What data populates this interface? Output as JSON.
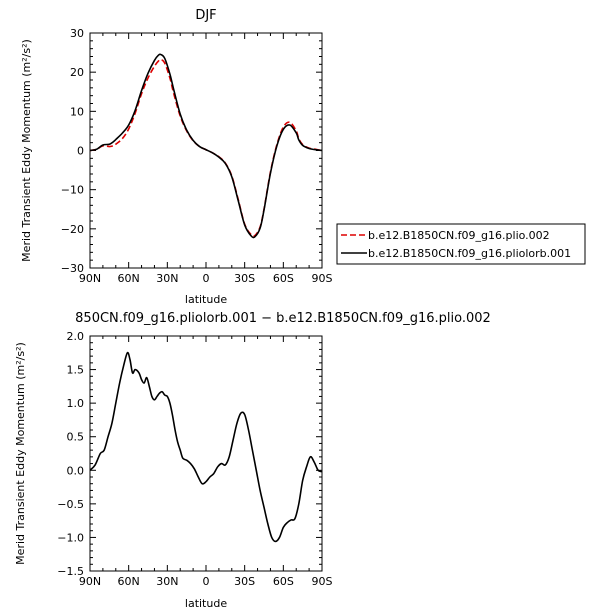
{
  "chart_data": [
    {
      "type": "line",
      "title": "DJF",
      "xlabel": "latitude",
      "ylabel": "Merid Transient Eddy Momentum (m²/s²)",
      "xlim": [
        90,
        -90
      ],
      "ylim": [
        -30,
        30
      ],
      "x_ticks": [
        90,
        60,
        30,
        0,
        -30,
        -60,
        -90
      ],
      "x_tick_labels": [
        "90N",
        "60N",
        "30N",
        "0",
        "30S",
        "60S",
        "90S"
      ],
      "y_ticks": [
        -30,
        -20,
        -10,
        0,
        10,
        20,
        30
      ],
      "y_tick_labels": [
        "−30",
        "−20",
        "−10",
        "0",
        "10",
        "20",
        "30"
      ],
      "legend_position": "right",
      "series": [
        {
          "name": "b.e12.B1850CN.f09_g16.plio.002",
          "style": "dashed",
          "color": "#dd0000",
          "x": [
            90,
            85,
            80,
            75,
            72,
            70,
            65,
            60,
            55,
            50,
            45,
            40,
            37,
            35,
            32,
            28,
            25,
            20,
            15,
            10,
            5,
            0,
            -5,
            -10,
            -15,
            -20,
            -25,
            -30,
            -35,
            -38,
            -42,
            -45,
            -50,
            -55,
            -60,
            -65,
            -70,
            -72,
            -75,
            -80,
            -85,
            -90
          ],
          "y": [
            0,
            0.3,
            1.2,
            1.0,
            1.2,
            1.6,
            3.0,
            5.5,
            9.5,
            14.5,
            18.5,
            21.5,
            22.8,
            23.2,
            22.3,
            18.5,
            14.5,
            8.8,
            5.0,
            2.5,
            1.0,
            0.2,
            -0.6,
            -1.6,
            -3.2,
            -6.5,
            -12.5,
            -18.8,
            -21.5,
            -21.7,
            -19.5,
            -15.0,
            -5.5,
            1.5,
            6.0,
            7.2,
            5.0,
            3.0,
            1.5,
            0.6,
            0.3,
            0
          ]
        },
        {
          "name": "b.e12.B1850CN.f09_g16.pliolorb.001",
          "style": "solid",
          "color": "#000000",
          "x": [
            90,
            85,
            80,
            75,
            72,
            70,
            65,
            60,
            55,
            50,
            45,
            40,
            37,
            35,
            32,
            28,
            25,
            20,
            15,
            10,
            5,
            0,
            -5,
            -10,
            -15,
            -20,
            -25,
            -30,
            -35,
            -38,
            -42,
            -45,
            -50,
            -55,
            -60,
            -65,
            -70,
            -72,
            -75,
            -80,
            -85,
            -90
          ],
          "y": [
            0,
            0.3,
            1.4,
            1.6,
            2.2,
            2.8,
            4.4,
            6.5,
            10.2,
            15.3,
            19.7,
            23.0,
            24.3,
            24.5,
            23.5,
            19.5,
            15.5,
            9.3,
            5.2,
            2.6,
            1.0,
            0.2,
            -0.6,
            -1.7,
            -3.3,
            -6.7,
            -12.8,
            -19.0,
            -21.8,
            -22.0,
            -19.8,
            -15.2,
            -5.8,
            1.2,
            5.4,
            6.5,
            4.5,
            2.7,
            1.3,
            0.5,
            0.2,
            0
          ]
        }
      ]
    },
    {
      "type": "line",
      "title": "850CN.f09_g16.pliolorb.001 − b.e12.B1850CN.f09_g16.plio.002",
      "xlabel": "latitude",
      "ylabel": "Merid Transient Eddy Momentum (m²/s²)",
      "xlim": [
        90,
        -90
      ],
      "ylim": [
        -1.5,
        2.0
      ],
      "x_ticks": [
        90,
        60,
        30,
        0,
        -30,
        -60,
        -90
      ],
      "x_tick_labels": [
        "90N",
        "60N",
        "30N",
        "0",
        "30S",
        "60S",
        "90S"
      ],
      "y_ticks": [
        -1.5,
        -1.0,
        -0.5,
        0.0,
        0.5,
        1.0,
        1.5,
        2.0
      ],
      "y_tick_labels": [
        "−1.5",
        "−1.0",
        "−0.5",
        "0.0",
        "0.5",
        "1.0",
        "1.5",
        "2.0"
      ],
      "series": [
        {
          "style": "solid",
          "color": "#000000",
          "x": [
            90,
            86,
            82,
            79,
            76,
            73,
            70,
            67,
            64,
            61,
            59,
            57,
            55,
            52,
            50,
            48,
            46,
            44,
            42,
            40,
            38,
            36,
            34,
            32,
            30,
            28,
            26,
            24,
            22,
            20,
            18,
            15,
            12,
            9,
            6,
            3,
            0,
            -3,
            -6,
            -9,
            -12,
            -15,
            -18,
            -21,
            -24,
            -27,
            -30,
            -33,
            -36,
            -39,
            -42,
            -45,
            -48,
            -51,
            -54,
            -57,
            -60,
            -63,
            -66,
            -69,
            -72,
            -75,
            -78,
            -81,
            -84,
            -87,
            -90
          ],
          "y": [
            0.0,
            0.08,
            0.25,
            0.3,
            0.5,
            0.7,
            1.0,
            1.3,
            1.55,
            1.75,
            1.65,
            1.45,
            1.5,
            1.45,
            1.35,
            1.3,
            1.38,
            1.25,
            1.1,
            1.05,
            1.1,
            1.15,
            1.17,
            1.12,
            1.1,
            1.0,
            0.82,
            0.6,
            0.42,
            0.3,
            0.18,
            0.15,
            0.1,
            0.02,
            -0.1,
            -0.2,
            -0.17,
            -0.1,
            -0.05,
            0.05,
            0.1,
            0.08,
            0.2,
            0.45,
            0.7,
            0.85,
            0.83,
            0.6,
            0.3,
            0.0,
            -0.3,
            -0.55,
            -0.8,
            -1.0,
            -1.06,
            -1.0,
            -0.85,
            -0.78,
            -0.74,
            -0.72,
            -0.5,
            -0.15,
            0.05,
            0.2,
            0.12,
            0.0,
            -0.02
          ]
        }
      ]
    }
  ]
}
